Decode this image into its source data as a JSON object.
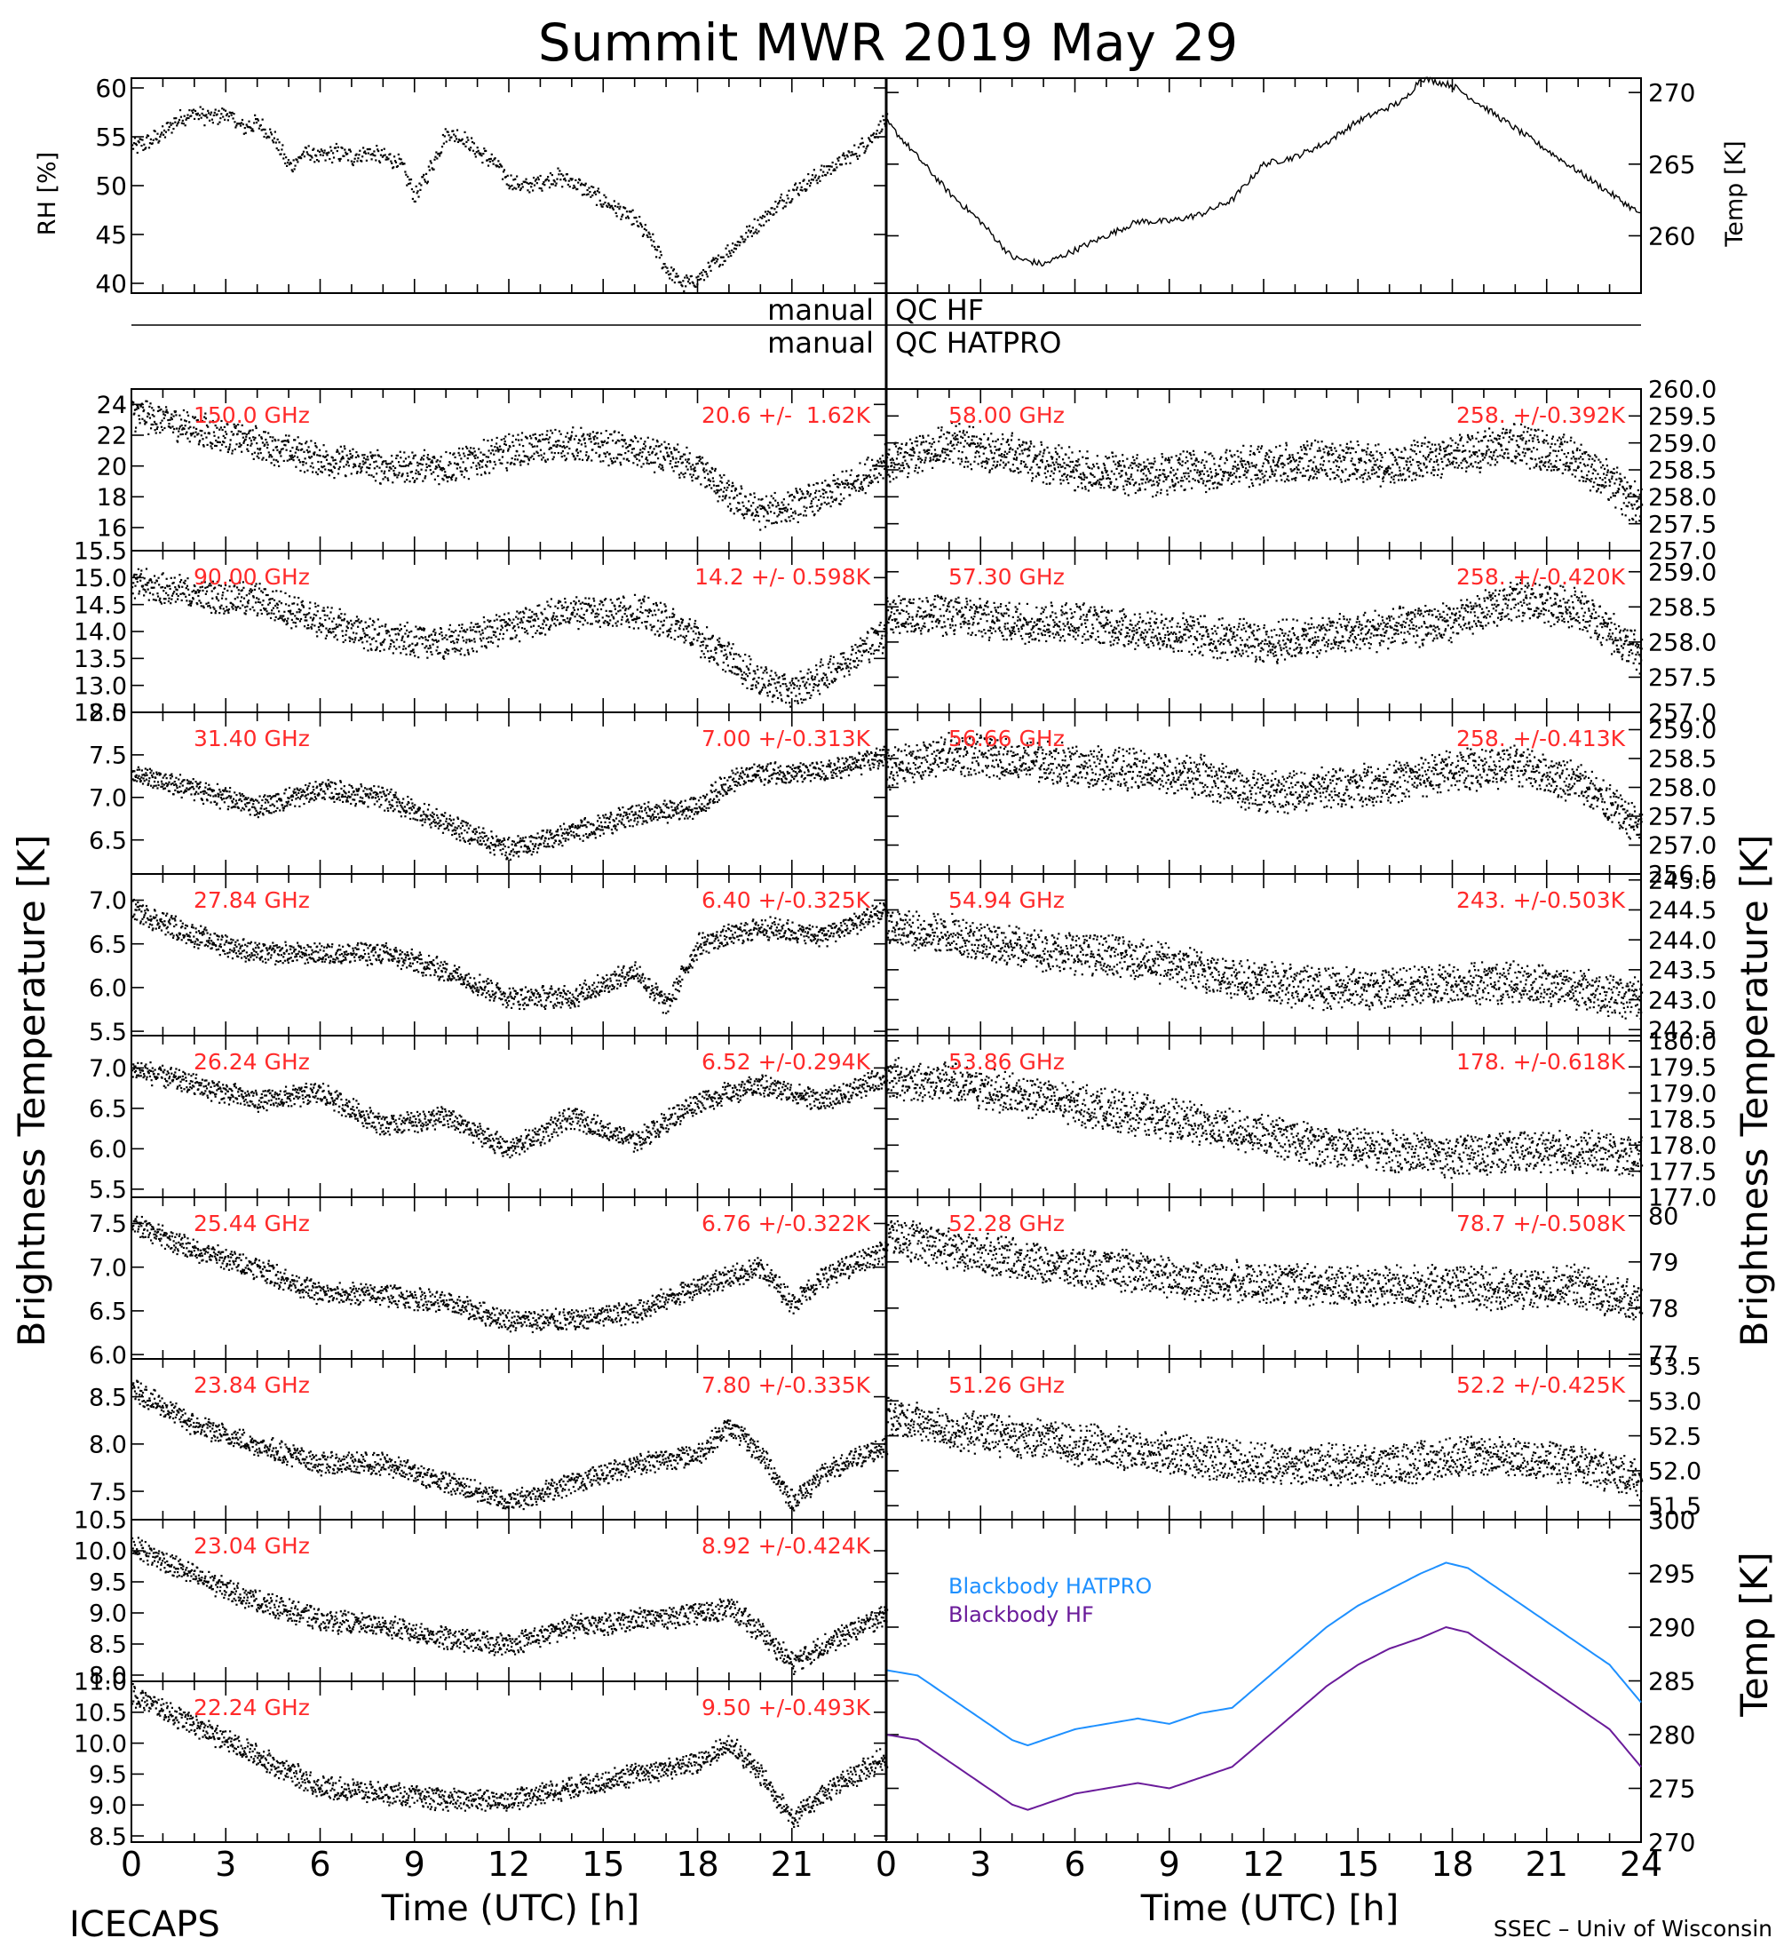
{
  "title": "Summit MWR 2019 May 29",
  "footer": {
    "left": "ICECAPS",
    "right": "SSEC – Univ of Wisconsin",
    "xlabel_left": "Time (UTC) [h]",
    "xlabel_right": "Time (UTC) [h]"
  },
  "ylabels": {
    "left_main": "Brightness Temperature [K]",
    "right_main": "Brightness Temperature [K]",
    "rh": "RH [%]",
    "temp": "Temp [K]",
    "bb_temp": "Temp [K]"
  },
  "qc": {
    "hf_left": "manual",
    "hf_right": "QC HF",
    "hatpro_left": "manual",
    "hatpro_right": "QC HATPRO"
  },
  "colors": {
    "channel_label": "#ff2a2a",
    "hatpro_line": "#1e90ff",
    "hf_line": "#6a1b9a",
    "data": "#000000"
  },
  "chart_data": [
    {
      "id": "rh",
      "type": "scatter",
      "ylabel": "RH [%]",
      "xlim": [
        0,
        24
      ],
      "ylim": [
        39,
        61
      ],
      "yticks": [
        "40",
        "45",
        "50",
        "55",
        "60"
      ],
      "x": [
        0,
        0.5,
        1,
        1.5,
        2,
        2.5,
        3,
        3.5,
        4,
        4.5,
        5,
        5.5,
        6,
        6.5,
        7,
        7.5,
        8,
        8.5,
        9,
        9.5,
        10,
        10.5,
        11,
        11.5,
        12,
        12.5,
        13,
        13.5,
        14,
        14.5,
        15,
        15.5,
        16,
        16.5,
        17,
        17.5,
        18,
        18.5,
        19,
        19.5,
        20,
        20.5,
        21,
        21.5,
        22,
        22.5,
        23,
        23.5,
        24
      ],
      "values": [
        54,
        54.5,
        55.5,
        57,
        57.5,
        57,
        57.5,
        56,
        56.5,
        55,
        52,
        53.5,
        53,
        53.5,
        53,
        53.5,
        53,
        52.5,
        49,
        52,
        55.5,
        55,
        53.5,
        52.5,
        50.5,
        50,
        50.5,
        51,
        50.5,
        49.5,
        48.5,
        47.5,
        46.5,
        44.5,
        41.5,
        40,
        40.5,
        42,
        43.5,
        45,
        46.5,
        48,
        49.5,
        50.5,
        51.5,
        52.5,
        53.5,
        55,
        57
      ]
    },
    {
      "id": "temp",
      "type": "line",
      "ylabel": "Temp [K]",
      "xlim": [
        0,
        24
      ],
      "ylim": [
        256,
        271
      ],
      "yticks": [
        "260",
        "265",
        "270"
      ],
      "x": [
        0,
        1,
        2,
        3,
        4,
        5,
        6,
        7,
        8,
        9,
        10,
        11,
        12,
        13,
        14,
        15,
        16,
        16.5,
        17,
        18,
        19,
        20,
        21,
        22,
        23,
        24
      ],
      "values": [
        268,
        265.5,
        263,
        261,
        258.5,
        258,
        259,
        260,
        261,
        261,
        261.5,
        262.5,
        265,
        265.5,
        266.5,
        268,
        269,
        269.5,
        271,
        270.5,
        269,
        267.5,
        266,
        264.5,
        263,
        261.5
      ]
    },
    {
      "id": "bb",
      "type": "line",
      "ylabel": "Temp [K]",
      "xlim": [
        0,
        24
      ],
      "ylim": [
        270,
        300
      ],
      "yticks": [
        "270",
        "275",
        "280",
        "285",
        "290",
        "295",
        "300"
      ],
      "series": [
        {
          "name": "Blackbody HATPRO",
          "x": [
            0,
            1,
            2,
            3,
            4,
            4.5,
            5,
            6,
            7,
            8,
            9,
            10,
            11,
            12,
            13,
            14,
            15,
            16,
            17,
            17.8,
            18.5,
            19,
            20,
            21,
            22,
            23,
            24
          ],
          "values": [
            286,
            285.5,
            283.5,
            281.5,
            279.5,
            279,
            279.5,
            280.5,
            281,
            281.5,
            281,
            282,
            282.5,
            285,
            287.5,
            290,
            292,
            293.5,
            295,
            296,
            295.5,
            294.5,
            292.5,
            290.5,
            288.5,
            286.5,
            283
          ]
        },
        {
          "name": "Blackbody HF",
          "x": [
            0,
            1,
            2,
            3,
            4,
            4.5,
            5,
            6,
            7,
            8,
            9,
            10,
            11,
            12,
            13,
            14,
            15,
            16,
            17,
            17.8,
            18.5,
            19,
            20,
            21,
            22,
            23,
            24
          ],
          "values": [
            280,
            279.5,
            277.5,
            275.5,
            273.5,
            273,
            273.5,
            274.5,
            275,
            275.5,
            275,
            276,
            277,
            279.5,
            282,
            284.5,
            286.5,
            288,
            289,
            290,
            289.5,
            288.5,
            286.5,
            284.5,
            282.5,
            280.5,
            277
          ]
        }
      ]
    },
    {
      "id": "ch150",
      "type": "scatter",
      "label": "150.0 GHz",
      "stats": "20.6 +/-  1.62K",
      "ylim": [
        14.5,
        25
      ],
      "yticks": [
        "16",
        "18",
        "20",
        "22",
        "24"
      ],
      "x": [
        0,
        2,
        4,
        6,
        8,
        10,
        12,
        14,
        16,
        17,
        18,
        19,
        20,
        21,
        22,
        23,
        24
      ],
      "values": [
        23.5,
        22.5,
        21.5,
        20.5,
        20,
        20,
        21,
        21.5,
        21,
        20.5,
        20,
        18,
        17,
        17.5,
        18,
        19,
        20.5
      ]
    },
    {
      "id": "ch90",
      "type": "scatter",
      "label": "90.00 GHz",
      "stats": "14.2 +/- 0.598K",
      "ylim": [
        12.5,
        15.5
      ],
      "yticks": [
        "12.5",
        "13.0",
        "13.5",
        "14.0",
        "14.5",
        "15.0",
        "15.5"
      ],
      "x": [
        0,
        2,
        4,
        6,
        8,
        10,
        12,
        14,
        16,
        17,
        18,
        19,
        20,
        21,
        22,
        23,
        24
      ],
      "values": [
        14.9,
        14.7,
        14.6,
        14.2,
        13.9,
        13.8,
        14.1,
        14.4,
        14.4,
        14.2,
        13.9,
        13.5,
        13.1,
        12.9,
        13.2,
        13.6,
        14.0
      ]
    },
    {
      "id": "ch3140",
      "type": "scatter",
      "label": "31.40 GHz",
      "stats": "7.00 +/-0.313K",
      "ylim": [
        6.1,
        8.0
      ],
      "yticks": [
        "6.5",
        "7.0",
        "7.5",
        "8.0"
      ],
      "x": [
        0,
        2,
        4,
        6,
        8,
        10,
        12,
        14,
        16,
        18,
        19,
        20,
        22,
        24
      ],
      "values": [
        7.3,
        7.1,
        6.9,
        7.1,
        7.0,
        6.7,
        6.4,
        6.6,
        6.8,
        6.9,
        7.2,
        7.3,
        7.3,
        7.5
      ]
    },
    {
      "id": "ch2784",
      "type": "scatter",
      "label": "27.84 GHz",
      "stats": "6.40 +/-0.325K",
      "ylim": [
        5.45,
        7.3
      ],
      "yticks": [
        "5.5",
        "6.0",
        "6.5",
        "7.0"
      ],
      "x": [
        0,
        2,
        4,
        6,
        8,
        10,
        12,
        14,
        16,
        17,
        18,
        20,
        22,
        24
      ],
      "values": [
        6.9,
        6.6,
        6.4,
        6.4,
        6.4,
        6.2,
        5.9,
        5.9,
        6.2,
        5.8,
        6.5,
        6.7,
        6.6,
        6.9
      ]
    },
    {
      "id": "ch2624",
      "type": "scatter",
      "label": "26.24 GHz",
      "stats": "6.52 +/-0.294K",
      "ylim": [
        5.4,
        7.4
      ],
      "yticks": [
        "5.5",
        "6.0",
        "6.5",
        "7.0"
      ],
      "x": [
        0,
        2,
        4,
        6,
        8,
        10,
        12,
        14,
        16,
        18,
        20,
        22,
        24
      ],
      "values": [
        7.0,
        6.8,
        6.6,
        6.7,
        6.3,
        6.4,
        6.0,
        6.4,
        6.1,
        6.6,
        6.8,
        6.6,
        6.9
      ]
    },
    {
      "id": "ch2544",
      "type": "scatter",
      "label": "25.44 GHz",
      "stats": "6.76 +/-0.322K",
      "ylim": [
        5.95,
        7.8
      ],
      "yticks": [
        "6.0",
        "6.5",
        "7.0",
        "7.5"
      ],
      "x": [
        0,
        2,
        4,
        6,
        8,
        10,
        12,
        14,
        16,
        18,
        20,
        21,
        22,
        24
      ],
      "values": [
        7.5,
        7.2,
        7.0,
        6.7,
        6.7,
        6.6,
        6.4,
        6.4,
        6.5,
        6.8,
        7.0,
        6.6,
        6.9,
        7.2
      ]
    },
    {
      "id": "ch2384",
      "type": "scatter",
      "label": "23.84 GHz",
      "stats": "7.80 +/-0.335K",
      "ylim": [
        7.2,
        8.9
      ],
      "yticks": [
        "7.5",
        "8.0",
        "8.5"
      ],
      "x": [
        0,
        2,
        4,
        6,
        8,
        10,
        12,
        14,
        16,
        18,
        19,
        20,
        21,
        22,
        24
      ],
      "values": [
        8.6,
        8.2,
        8.0,
        7.8,
        7.8,
        7.6,
        7.4,
        7.6,
        7.8,
        7.9,
        8.2,
        7.9,
        7.4,
        7.7,
        8.0
      ]
    },
    {
      "id": "ch2304",
      "type": "scatter",
      "label": "23.04 GHz",
      "stats": "8.92 +/-0.424K",
      "ylim": [
        7.9,
        10.5
      ],
      "yticks": [
        "8.0",
        "8.5",
        "9.0",
        "9.5",
        "10.0",
        "10.5"
      ],
      "x": [
        0,
        2,
        4,
        6,
        8,
        10,
        12,
        14,
        16,
        18,
        19,
        20,
        21,
        22,
        24
      ],
      "values": [
        10.1,
        9.6,
        9.2,
        8.9,
        8.8,
        8.6,
        8.5,
        8.8,
        8.9,
        9.0,
        9.1,
        8.7,
        8.2,
        8.5,
        9.0
      ]
    },
    {
      "id": "ch2224",
      "type": "scatter",
      "label": "22.24 GHz",
      "stats": "9.50 +/-0.493K",
      "ylim": [
        8.4,
        11.0
      ],
      "yticks": [
        "8.5",
        "9.0",
        "9.5",
        "10.0",
        "10.5",
        "11.0"
      ],
      "x": [
        0,
        2,
        4,
        6,
        8,
        10,
        12,
        14,
        16,
        18,
        19,
        20,
        21,
        22,
        24
      ],
      "values": [
        10.8,
        10.3,
        9.8,
        9.3,
        9.2,
        9.1,
        9.1,
        9.3,
        9.5,
        9.7,
        10.0,
        9.5,
        8.8,
        9.2,
        9.8
      ]
    },
    {
      "id": "ch5800",
      "type": "scatter",
      "label": "58.00 GHz",
      "stats": "258. +/-0.392K",
      "ylim": [
        257.0,
        260.0
      ],
      "yticks": [
        "257.0",
        "257.5",
        "258.0",
        "258.5",
        "259.0",
        "259.5",
        "260.0"
      ],
      "x": [
        0,
        2,
        4,
        6,
        8,
        10,
        12,
        14,
        16,
        18,
        20,
        22,
        24
      ],
      "values": [
        258.6,
        259.0,
        258.8,
        258.5,
        258.4,
        258.5,
        258.6,
        258.7,
        258.6,
        258.8,
        259.0,
        258.7,
        257.8
      ]
    },
    {
      "id": "ch5730",
      "type": "scatter",
      "label": "57.30 GHz",
      "stats": "258. +/-0.420K",
      "ylim": [
        257.0,
        259.3
      ],
      "yticks": [
        "257.0",
        "257.5",
        "258.0",
        "258.5",
        "259.0"
      ],
      "x": [
        0,
        2,
        4,
        6,
        8,
        10,
        12,
        14,
        16,
        18,
        20,
        22,
        24
      ],
      "values": [
        258.4,
        258.4,
        258.3,
        258.3,
        258.2,
        258.1,
        258.0,
        258.1,
        258.2,
        258.3,
        258.6,
        258.5,
        257.8
      ]
    },
    {
      "id": "ch5666",
      "type": "scatter",
      "label": "56.66 GHz",
      "stats": "258. +/-0.413K",
      "ylim": [
        256.5,
        259.3
      ],
      "yticks": [
        "256.5",
        "257.0",
        "257.5",
        "258.0",
        "258.5",
        "259.0"
      ],
      "x": [
        0,
        2,
        4,
        6,
        8,
        10,
        12,
        14,
        16,
        18,
        20,
        22,
        24
      ],
      "values": [
        258.3,
        258.6,
        258.5,
        258.4,
        258.3,
        258.2,
        257.9,
        258.0,
        258.1,
        258.3,
        258.4,
        258.1,
        257.3
      ]
    },
    {
      "id": "ch5494",
      "type": "scatter",
      "label": "54.94 GHz",
      "stats": "243. +/-0.503K",
      "ylim": [
        242.4,
        245.1
      ],
      "yticks": [
        "242.5",
        "243.0",
        "243.5",
        "244.0",
        "244.5",
        "245.0"
      ],
      "x": [
        0,
        2,
        4,
        6,
        8,
        10,
        12,
        14,
        16,
        18,
        20,
        22,
        24
      ],
      "values": [
        244.2,
        244.1,
        243.9,
        243.8,
        243.7,
        243.5,
        243.3,
        243.2,
        243.2,
        243.3,
        243.3,
        243.2,
        243.0
      ]
    },
    {
      "id": "ch5386",
      "type": "scatter",
      "label": "53.86 GHz",
      "stats": "178. +/-0.618K",
      "ylim": [
        177.0,
        180.1
      ],
      "yticks": [
        "177.0",
        "177.5",
        "178.0",
        "178.5",
        "179.0",
        "179.5",
        "180.0"
      ],
      "x": [
        0,
        2,
        4,
        6,
        8,
        10,
        12,
        14,
        16,
        18,
        20,
        22,
        24
      ],
      "values": [
        179.3,
        179.2,
        179.0,
        178.8,
        178.6,
        178.4,
        178.2,
        178.0,
        177.9,
        177.8,
        177.9,
        177.9,
        177.8
      ]
    },
    {
      "id": "ch5228",
      "type": "scatter",
      "label": "52.28 GHz",
      "stats": "78.7 +/-0.508K",
      "ylim": [
        76.9,
        80.4
      ],
      "yticks": [
        "77",
        "78",
        "79",
        "80"
      ],
      "x": [
        0,
        2,
        4,
        6,
        8,
        10,
        12,
        14,
        16,
        18,
        20,
        22,
        24
      ],
      "values": [
        79.6,
        79.3,
        79.1,
        78.9,
        78.8,
        78.6,
        78.6,
        78.5,
        78.5,
        78.5,
        78.4,
        78.5,
        78.1
      ]
    },
    {
      "id": "ch5126",
      "type": "scatter",
      "label": "51.26 GHz",
      "stats": "52.2 +/-0.425K",
      "ylim": [
        51.3,
        53.6
      ],
      "yticks": [
        "51.5",
        "52.0",
        "52.5",
        "53.0",
        "53.5"
      ],
      "x": [
        0,
        2,
        4,
        6,
        8,
        10,
        12,
        14,
        16,
        18,
        20,
        22,
        24
      ],
      "values": [
        52.8,
        52.6,
        52.5,
        52.4,
        52.3,
        52.2,
        52.1,
        52.1,
        52.1,
        52.2,
        52.2,
        52.1,
        51.9
      ]
    }
  ],
  "xticks": [
    "0",
    "3",
    "6",
    "9",
    "12",
    "15",
    "18",
    "21",
    "0",
    "3",
    "6",
    "9",
    "12",
    "15",
    "18",
    "21",
    "24"
  ]
}
